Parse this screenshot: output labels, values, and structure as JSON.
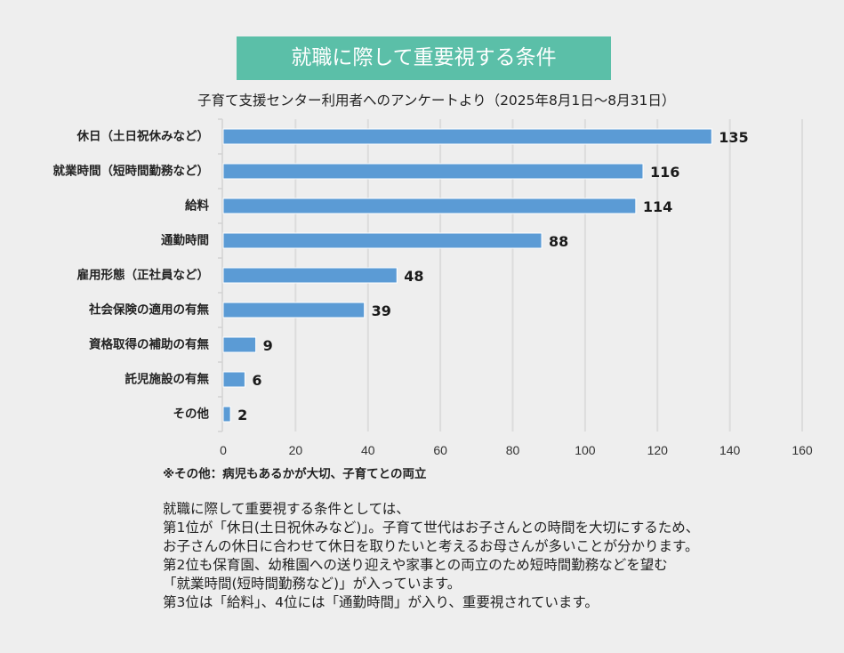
{
  "chart_data": {
    "type": "bar",
    "orientation": "horizontal",
    "title": "就職に際して重要視する条件",
    "subtitle": "子育て支援センター利用者へのアンケートより（2025年8月1日～8月31日）",
    "categories": [
      "休日（土日祝休みなど）",
      "就業時間（短時間勤務など）",
      "給料",
      "通勤時間",
      "雇用形態（正社員など）",
      "社会保険の適用の有無",
      "資格取得の補助の有無",
      "託児施設の有無",
      "その他"
    ],
    "values": [
      135,
      116,
      114,
      88,
      48,
      39,
      9,
      6,
      2
    ],
    "xlabel": "",
    "ylabel": "",
    "xlim": [
      0,
      160
    ],
    "xticks": [
      0,
      20,
      40,
      60,
      80,
      100,
      120,
      140,
      160
    ],
    "grid": true,
    "data_labels": true,
    "annotation": "※その他：病児もあるかが大切、子育てとの両立"
  },
  "description": {
    "lines": [
      "就職に際して重要視する条件としては、",
      "第1位が「休日(土日祝休みなど)」。子育て世代はお子さんとの時間を大切にするため、",
      "お子さんの休日に合わせて休日を取りたいと考えるお母さんが多いことが分かります。",
      "第2位も保育園、幼稚園への送り迎えや家事との両立のため短時間勤務などを望む",
      "「就業時間(短時間勤務など)」が入っています。",
      "第3位は「給料」、4位には「通勤時間」が入り、重要視されています。"
    ]
  },
  "colors": {
    "title_background": "#5bbfa8",
    "title_text": "#ffffff",
    "bar": "#5b9bd5",
    "grid": "#dcdcdc",
    "background": "#eeeeee"
  }
}
